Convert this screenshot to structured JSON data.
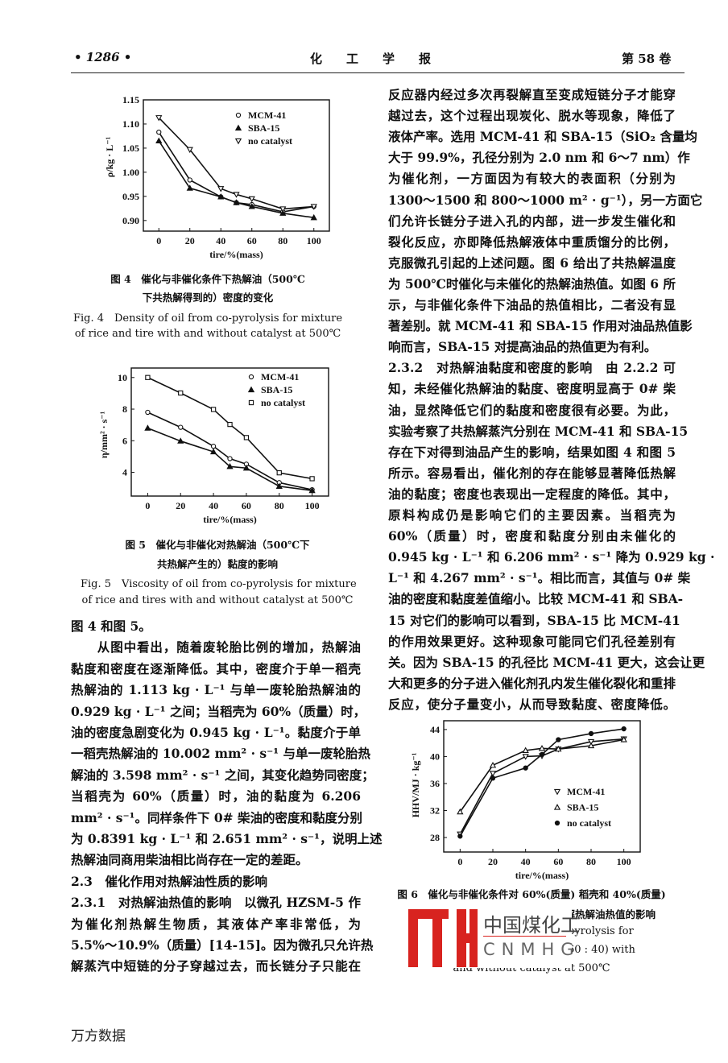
{
  "header": {
    "page_number": "• 1286 •",
    "journal": "化　　工　　学　　报",
    "volume": "第 58 卷"
  },
  "left_column": {
    "lines": [
      "图 4 和图 5。",
      "　　从图中看出，随着废轮胎比例的增加，热解油",
      "黏度和密度在逐渐降低。其中，密度介于单一稻壳",
      "热解油的 1.113 kg · L⁻¹ 与单一废轮胎热解油的",
      "0.929 kg · L⁻¹ 之间；当稻壳为 60%（质量）时，",
      "油的密度急剧变化为 0.945 kg · L⁻¹。黏度介于单",
      "一稻壳热解油的 10.002 mm² · s⁻¹ 与单一废轮胎热",
      "解油的 3.598 mm² · s⁻¹ 之间，其变化趋势同密度；",
      "当稻壳为 60%（质量）时，油的黏度为 6.206",
      "mm² · s⁻¹。同样条件下 0# 柴油的密度和黏度分别",
      "为 0.8391 kg · L⁻¹ 和 2.651 mm² · s⁻¹，说明上述",
      "热解油同商用柴油相比尚存在一定的差距。",
      "2.3　催化作用对热解油性质的影响",
      "2.3.1　对热解油热值的影响　以微孔 HZSM-5 作",
      "为催化剂热解生物质，其液体产率非常低，为",
      "5.5%～10.9%（质量）[14-15]。因为微孔只允许热",
      "解蒸汽中短链的分子穿越过去，而长链分子只能在"
    ]
  },
  "right_column": {
    "lines": [
      "反应器内经过多次再裂解直至变成短链分子才能穿",
      "越过去，这个过程出现炭化、脱水等现象，降低了",
      "液体产率。选用 MCM-41 和 SBA-15（SiO₂ 含量均",
      "大于 99.9%，孔径分别为 2.0 nm 和 6～7 nm）作",
      "为催化剂，一方面因为有较大的表面积（分别为",
      "1300～1500 和 800～1000 m² · g⁻¹），另一方面它",
      "们允许长链分子进入孔的内部，进一步发生催化和",
      "裂化反应，亦即降低热解液体中重质馏分的比例，",
      "克服微孔引起的上述问题。图 6 给出了共热解温度",
      "为 500℃时催化与未催化的热解油热值。如图 6 所",
      "示，与非催化条件下油品的热值相比，二者没有显",
      "著差别。就 MCM-41 和 SBA-15 作用对油品热值影",
      "响而言，SBA-15 对提高油品的热值更为有利。",
      "2.3.2　对热解油黏度和密度的影响　由 2.2.2 可",
      "知，未经催化热解油的黏度、密度明显高于 0# 柴",
      "油，显然降低它们的黏度和密度很有必要。为此，",
      "实验考察了共热解蒸汽分别在 MCM-41 和 SBA-15",
      "存在下对得到油品产生的影响，结果如图 4 和图 5",
      "所示。容易看出，催化剂的存在能够显著降低热解",
      "油的黏度；密度也表现出一定程度的降低。其中，",
      "原料构成仍是影响它们的主要因素。当稻壳为",
      "60%（质量）时，密度和黏度分别由未催化的",
      "0.945 kg · L⁻¹ 和 6.206 mm² · s⁻¹ 降为 0.929 kg ·",
      "L⁻¹ 和 4.267 mm² · s⁻¹。相比而言，其值与 0# 柴",
      "油的密度和黏度差值缩小。比较 MCM-41 和 SBA-",
      "15 对它们的影响可以看到，SBA-15 比 MCM-41",
      "的作用效果更好。这种现象可能同它们孔径差别有",
      "关。因为 SBA-15 的孔径比 MCM-41 更大，这会让更",
      "大和更多的分子进入催化剂孔内发生催化裂化和重排",
      "反应，使分子量变小，从而导致黏度、密度降低。"
    ]
  },
  "figures": {
    "fig4": {
      "caption_cn": [
        "图 4　催化与非催化条件下热解油（500℃",
        "下共热解得到的）密度的变化"
      ],
      "caption_en": [
        "Fig. 4　Density of oil from co-pyrolysis for mixture",
        "of rice and tire with and without catalyst at 500℃"
      ]
    },
    "fig5": {
      "caption_cn": [
        "图 5　催化与非催化对热解油（500℃下",
        "共热解产生的）黏度的影响"
      ],
      "caption_en": [
        "Fig. 5　Viscosity of oil from co-pyrolysis for mixture",
        "of rice and tires with and without catalyst at 500℃"
      ]
    },
    "fig6": {
      "caption_cn": [
        "图 6　催化与非催化条件对 60%(质量) 稻壳和 40%(质量)",
        "废轮胎组成的混合物在 500℃共热解热解油热值的影响"
      ],
      "caption_en": [
        "pyrolysis for",
        "60 : 40) with",
        "and without catalyst at 500℃"
      ]
    }
  },
  "watermark": {
    "text_cn": "中国煤化工",
    "text_en": "CNMHG",
    "color": "#d8231f"
  },
  "footer": {
    "text": "万方数据"
  },
  "chart_data": [
    {
      "id": "fig4",
      "type": "line",
      "xlabel": "tire/%(mass)",
      "ylabel": "ρ/kg · L⁻¹",
      "x": [
        0,
        20,
        40,
        50,
        60,
        80,
        100
      ],
      "xticks": [
        0,
        20,
        40,
        60,
        80,
        100
      ],
      "yticks": [
        0.9,
        0.95,
        1.0,
        1.05,
        1.1,
        1.15
      ],
      "xlim": [
        -10,
        110
      ],
      "ylim": [
        0.878,
        1.15
      ],
      "ytick_decimals": 2,
      "grid": false,
      "legend": "top-right",
      "series": [
        {
          "name": "MCM-41",
          "marker": "circle-open",
          "values": [
            1.083,
            0.984,
            0.949,
            0.937,
            0.933,
            0.918,
            0.929
          ]
        },
        {
          "name": "SBA-15",
          "marker": "triangle-up",
          "values": [
            1.065,
            0.967,
            0.949,
            0.937,
            0.929,
            0.915,
            0.906
          ]
        },
        {
          "name": "no catalyst",
          "marker": "triangle-down-open",
          "values": [
            1.113,
            1.047,
            0.966,
            0.954,
            0.945,
            0.924,
            0.929
          ]
        }
      ]
    },
    {
      "id": "fig5",
      "type": "line",
      "xlabel": "tire/%(mass)",
      "ylabel": "η/mm² · s⁻¹",
      "x": [
        0,
        20,
        40,
        50,
        60,
        80,
        100
      ],
      "xticks": [
        0,
        20,
        40,
        60,
        80,
        100
      ],
      "yticks": [
        4,
        6,
        8,
        10
      ],
      "xlim": [
        -10,
        110
      ],
      "ylim": [
        2.5,
        10.6
      ],
      "ytick_decimals": 0,
      "grid": false,
      "legend": "top-right",
      "series": [
        {
          "name": "MCM-41",
          "marker": "circle-open",
          "values": [
            7.8,
            6.85,
            5.65,
            4.87,
            4.52,
            3.35,
            2.9
          ]
        },
        {
          "name": "SBA-15",
          "marker": "triangle-up",
          "values": [
            6.8,
            5.98,
            5.3,
            4.37,
            4.27,
            3.12,
            2.85
          ]
        },
        {
          "name": "no catalyst",
          "marker": "square-open",
          "values": [
            10.0,
            9.02,
            7.98,
            7.03,
            6.2,
            3.97,
            3.6
          ]
        }
      ]
    },
    {
      "id": "fig6",
      "type": "line",
      "xlabel": "tire/%(mass)",
      "ylabel": "HHV/MJ · kg⁻¹",
      "x": [
        0,
        20,
        40,
        50,
        60,
        80,
        100
      ],
      "xticks": [
        0,
        20,
        40,
        60,
        80,
        100
      ],
      "yticks": [
        28,
        32,
        36,
        40,
        44
      ],
      "xlim": [
        -10,
        110
      ],
      "ylim": [
        25.85,
        45.3
      ],
      "ytick_decimals": 0,
      "grid": false,
      "legend": "bottom-right",
      "series": [
        {
          "name": "MCM-41",
          "marker": "triangle-down-open",
          "values": [
            28.5,
            37.5,
            40.0,
            40.1,
            41.1,
            42.2,
            42.6
          ]
        },
        {
          "name": "SBA-15",
          "marker": "triangle-up-open",
          "values": [
            31.8,
            38.7,
            40.9,
            41.2,
            41.1,
            41.6,
            42.5
          ]
        },
        {
          "name": "no catalyst",
          "marker": "circle-filled",
          "values": [
            28.2,
            36.8,
            38.3,
            40.3,
            42.5,
            43.4,
            44.1
          ]
        }
      ]
    }
  ]
}
